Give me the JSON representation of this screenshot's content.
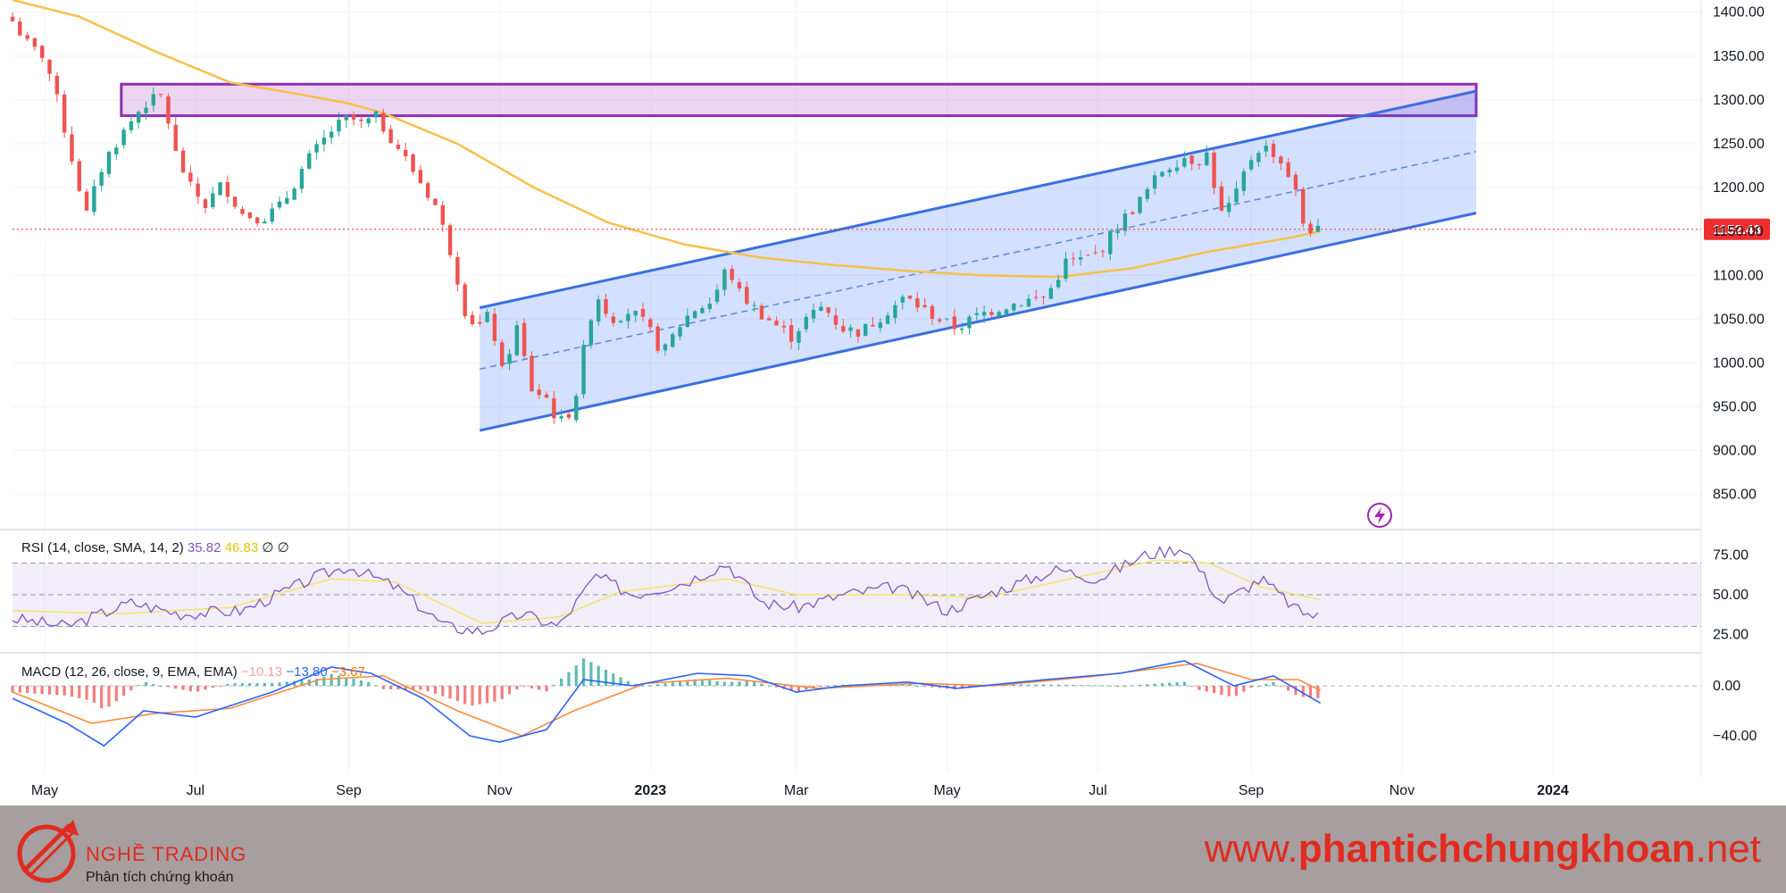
{
  "chart_data": {
    "type": "candlestick",
    "symbol": "",
    "price_axis": {
      "range": [
        811,
        1414
      ],
      "ticks": [
        850,
        900,
        950,
        1000,
        1050,
        1100,
        1150,
        1200,
        1250,
        1300,
        1350,
        1400
      ],
      "tick_labels": [
        "850.00",
        "900.00",
        "950.00",
        "1000.00",
        "1050.00",
        "1100.00",
        "1150.00",
        "1200.00",
        "1250.00",
        "1300.00",
        "1350.00",
        "1400.00"
      ]
    },
    "time_axis": {
      "range": [
        "2022-04-18",
        "2024-03-01"
      ],
      "ticks": [
        {
          "date": "2022-05-01",
          "label": "May"
        },
        {
          "date": "2022-07-01",
          "label": "Jul"
        },
        {
          "date": "2022-09-01",
          "label": "Sep"
        },
        {
          "date": "2022-11-01",
          "label": "Nov"
        },
        {
          "date": "2023-01-01",
          "label": "2023"
        },
        {
          "date": "2023-03-01",
          "label": "Mar"
        },
        {
          "date": "2023-05-01",
          "label": "May"
        },
        {
          "date": "2023-07-01",
          "label": "Jul"
        },
        {
          "date": "2023-09-01",
          "label": "Sep"
        },
        {
          "date": "2023-11-01",
          "label": "Nov"
        },
        {
          "date": "2024-01-01",
          "label": "2024"
        }
      ]
    },
    "last_price": 1152.43,
    "last_price_label": "1152.43",
    "close_path": [
      [
        "2022-04-18",
        1390
      ],
      [
        "2022-04-25",
        1360
      ],
      [
        "2022-05-01",
        1350
      ],
      [
        "2022-05-07",
        1290
      ],
      [
        "2022-05-14",
        1210
      ],
      [
        "2022-05-18",
        1170
      ],
      [
        "2022-05-25",
        1230
      ],
      [
        "2022-06-01",
        1260
      ],
      [
        "2022-06-10",
        1295
      ],
      [
        "2022-06-18",
        1305
      ],
      [
        "2022-06-22",
        1245
      ],
      [
        "2022-06-29",
        1200
      ],
      [
        "2022-07-05",
        1180
      ],
      [
        "2022-07-12",
        1205
      ],
      [
        "2022-07-20",
        1170
      ],
      [
        "2022-07-28",
        1165
      ],
      [
        "2022-08-05",
        1180
      ],
      [
        "2022-08-15",
        1230
      ],
      [
        "2022-08-25",
        1265
      ],
      [
        "2022-09-01",
        1280
      ],
      [
        "2022-09-06",
        1272
      ],
      [
        "2022-09-12",
        1280
      ],
      [
        "2022-09-20",
        1250
      ],
      [
        "2022-09-28",
        1215
      ],
      [
        "2022-10-06",
        1180
      ],
      [
        "2022-10-13",
        1120
      ],
      [
        "2022-10-18",
        1060
      ],
      [
        "2022-10-23",
        1040
      ],
      [
        "2022-10-28",
        1055
      ],
      [
        "2022-11-02",
        990
      ],
      [
        "2022-11-08",
        1040
      ],
      [
        "2022-11-14",
        970
      ],
      [
        "2022-11-20",
        960
      ],
      [
        "2022-11-25",
        930
      ],
      [
        "2022-12-01",
        950
      ],
      [
        "2022-12-06",
        1030
      ],
      [
        "2022-12-10",
        1080
      ],
      [
        "2022-12-16",
        1050
      ],
      [
        "2022-12-24",
        1060
      ],
      [
        "2022-12-31",
        1040
      ],
      [
        "2023-01-06",
        1010
      ],
      [
        "2023-01-12",
        1040
      ],
      [
        "2023-01-18",
        1060
      ],
      [
        "2023-01-26",
        1070
      ],
      [
        "2023-02-01",
        1110
      ],
      [
        "2023-02-06",
        1080
      ],
      [
        "2023-02-13",
        1060
      ],
      [
        "2023-02-20",
        1045
      ],
      [
        "2023-02-27",
        1030
      ],
      [
        "2023-03-05",
        1050
      ],
      [
        "2023-03-12",
        1065
      ],
      [
        "2023-03-19",
        1040
      ],
      [
        "2023-03-27",
        1035
      ],
      [
        "2023-04-05",
        1055
      ],
      [
        "2023-04-14",
        1075
      ],
      [
        "2023-04-22",
        1060
      ],
      [
        "2023-05-01",
        1045
      ],
      [
        "2023-05-05",
        1040
      ],
      [
        "2023-05-14",
        1055
      ],
      [
        "2023-05-24",
        1065
      ],
      [
        "2023-06-03",
        1072
      ],
      [
        "2023-06-10",
        1075
      ],
      [
        "2023-06-18",
        1115
      ],
      [
        "2023-06-25",
        1118
      ],
      [
        "2023-07-01",
        1125
      ],
      [
        "2023-07-10",
        1160
      ],
      [
        "2023-07-18",
        1185
      ],
      [
        "2023-07-27",
        1220
      ],
      [
        "2023-08-05",
        1235
      ],
      [
        "2023-08-10",
        1230
      ],
      [
        "2023-08-14",
        1238
      ],
      [
        "2023-08-20",
        1170
      ],
      [
        "2023-08-25",
        1185
      ],
      [
        "2023-08-31",
        1230
      ],
      [
        "2023-09-05",
        1248
      ],
      [
        "2023-09-10",
        1240
      ],
      [
        "2023-09-14",
        1225
      ],
      [
        "2023-09-18",
        1205
      ],
      [
        "2023-09-22",
        1160
      ],
      [
        "2023-09-27",
        1148
      ],
      [
        "2023-09-29",
        1152.43
      ]
    ],
    "ma_line": [
      [
        "2022-04-18",
        1414
      ],
      [
        "2022-05-15",
        1395
      ],
      [
        "2022-06-15",
        1355
      ],
      [
        "2022-07-15",
        1320
      ],
      [
        "2022-08-15",
        1305
      ],
      [
        "2022-09-01",
        1296
      ],
      [
        "2022-09-15",
        1285
      ],
      [
        "2022-10-15",
        1250
      ],
      [
        "2022-11-15",
        1200
      ],
      [
        "2022-12-15",
        1160
      ],
      [
        "2023-01-15",
        1135
      ],
      [
        "2023-02-15",
        1120
      ],
      [
        "2023-03-15",
        1112
      ],
      [
        "2023-04-15",
        1105
      ],
      [
        "2023-05-15",
        1100
      ],
      [
        "2023-06-15",
        1098
      ],
      [
        "2023-07-15",
        1108
      ],
      [
        "2023-08-15",
        1127
      ],
      [
        "2023-09-15",
        1142
      ],
      [
        "2023-09-29",
        1150
      ]
    ],
    "resistance_zone": {
      "from": "2022-06-01",
      "to": "2023-12-01",
      "low": 1282,
      "high": 1318
    },
    "channel": {
      "start": "2022-10-24",
      "end": "2023-12-01",
      "upper": [
        1063,
        1310
      ],
      "middle": [
        993,
        1241
      ],
      "lower": [
        923,
        1171
      ]
    },
    "rsi": {
      "label": "RSI (14, close, SMA, 14, 2)",
      "value": "35.82",
      "sma": "46.83",
      "extra": "∅ ∅",
      "range": [
        14,
        90
      ],
      "band": [
        30,
        70
      ],
      "middle": 50,
      "tick_labels": [
        "75.00",
        "50.00",
        "25.00"
      ],
      "ticks": [
        75,
        50,
        25
      ],
      "series": [
        [
          "2022-04-18",
          35
        ],
        [
          "2022-05-10",
          30
        ],
        [
          "2022-06-05",
          45
        ],
        [
          "2022-06-25",
          38
        ],
        [
          "2022-07-20",
          40
        ],
        [
          "2022-08-20",
          62
        ],
        [
          "2022-09-01",
          68
        ],
        [
          "2022-09-20",
          55
        ],
        [
          "2022-10-10",
          30
        ],
        [
          "2022-10-25",
          27
        ],
        [
          "2022-11-10",
          38
        ],
        [
          "2022-11-25",
          30
        ],
        [
          "2022-12-10",
          62
        ],
        [
          "2022-12-25",
          50
        ],
        [
          "2023-01-15",
          58
        ],
        [
          "2023-02-01",
          70
        ],
        [
          "2023-02-15",
          45
        ],
        [
          "2023-03-01",
          42
        ],
        [
          "2023-03-20",
          50
        ],
        [
          "2023-04-10",
          55
        ],
        [
          "2023-05-01",
          40
        ],
        [
          "2023-05-20",
          52
        ],
        [
          "2023-06-15",
          66
        ],
        [
          "2023-07-01",
          60
        ],
        [
          "2023-07-20",
          75
        ],
        [
          "2023-08-05",
          80
        ],
        [
          "2023-08-20",
          45
        ],
        [
          "2023-09-05",
          60
        ],
        [
          "2023-09-20",
          40
        ],
        [
          "2023-09-29",
          35.82
        ]
      ],
      "sma_series": [
        [
          "2022-04-18",
          40
        ],
        [
          "2022-06-01",
          38
        ],
        [
          "2022-07-15",
          42
        ],
        [
          "2022-08-25",
          60
        ],
        [
          "2022-09-20",
          58
        ],
        [
          "2022-10-25",
          32
        ],
        [
          "2022-11-25",
          36
        ],
        [
          "2022-12-20",
          52
        ],
        [
          "2023-02-01",
          60
        ],
        [
          "2023-03-01",
          50
        ],
        [
          "2023-04-15",
          50
        ],
        [
          "2023-05-15",
          48
        ],
        [
          "2023-06-20",
          60
        ],
        [
          "2023-07-25",
          72
        ],
        [
          "2023-08-15",
          70
        ],
        [
          "2023-09-05",
          55
        ],
        [
          "2023-09-29",
          46.83
        ]
      ]
    },
    "macd": {
      "label": "MACD (12, 26, close, 9, EMA, EMA)",
      "histogram_value": "−10.13",
      "macd_value": "−13.80",
      "signal_value": "−3.67",
      "range": [
        -70,
        25
      ],
      "tick_labels": [
        "0.00",
        "−40.00"
      ],
      "ticks": [
        0,
        -40
      ],
      "macd_series": [
        [
          "2022-04-18",
          -10
        ],
        [
          "2022-05-10",
          -30
        ],
        [
          "2022-05-25",
          -48
        ],
        [
          "2022-06-10",
          -20
        ],
        [
          "2022-07-01",
          -25
        ],
        [
          "2022-08-01",
          -5
        ],
        [
          "2022-08-25",
          15
        ],
        [
          "2022-09-10",
          10
        ],
        [
          "2022-10-01",
          -10
        ],
        [
          "2022-10-20",
          -40
        ],
        [
          "2022-11-01",
          -45
        ],
        [
          "2022-11-20",
          -35
        ],
        [
          "2022-12-05",
          5
        ],
        [
          "2022-12-25",
          0
        ],
        [
          "2023-01-20",
          10
        ],
        [
          "2023-02-10",
          8
        ],
        [
          "2023-03-01",
          -5
        ],
        [
          "2023-03-20",
          0
        ],
        [
          "2023-04-15",
          3
        ],
        [
          "2023-05-05",
          -2
        ],
        [
          "2023-06-10",
          5
        ],
        [
          "2023-07-10",
          10
        ],
        [
          "2023-08-05",
          20
        ],
        [
          "2023-08-25",
          0
        ],
        [
          "2023-09-10",
          8
        ],
        [
          "2023-09-29",
          -13.8
        ]
      ],
      "signal_series": [
        [
          "2022-04-18",
          -5
        ],
        [
          "2022-05-20",
          -30
        ],
        [
          "2022-06-15",
          -22
        ],
        [
          "2022-07-15",
          -18
        ],
        [
          "2022-08-20",
          5
        ],
        [
          "2022-09-15",
          8
        ],
        [
          "2022-10-15",
          -20
        ],
        [
          "2022-11-10",
          -40
        ],
        [
          "2022-12-01",
          -20
        ],
        [
          "2022-12-30",
          2
        ],
        [
          "2023-02-01",
          6
        ],
        [
          "2023-03-10",
          -2
        ],
        [
          "2023-04-20",
          2
        ],
        [
          "2023-05-20",
          0
        ],
        [
          "2023-07-01",
          8
        ],
        [
          "2023-08-10",
          18
        ],
        [
          "2023-09-01",
          5
        ],
        [
          "2023-09-20",
          5
        ],
        [
          "2023-09-29",
          -3.67
        ]
      ]
    }
  },
  "footer": {
    "brand_name": "NGHỀ TRADING",
    "tagline": "Phân tích chứng khoán",
    "website_prefix": "www.",
    "website_main": "phantichchungkhoan",
    "website_suffix": ".net"
  },
  "colors": {
    "up": "#26a69a",
    "down": "#ef5350",
    "ma": "#f7c04a",
    "channel": "#3a6fe0",
    "zone": "#8e2fb3",
    "rsi": "#7e57c2",
    "price_tag": "#ef2f2f",
    "footer_bg": "#a79e9f"
  }
}
